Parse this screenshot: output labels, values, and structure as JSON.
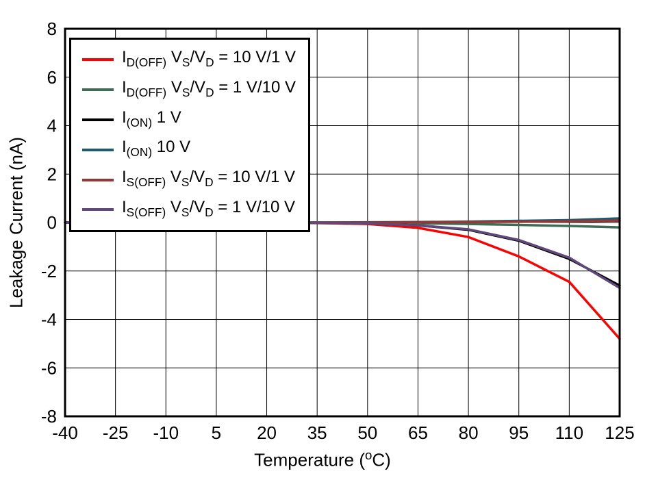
{
  "chart_data": {
    "type": "line",
    "title": "",
    "xlabel": "Temperature (^{o}C)",
    "ylabel": "Leakage Current (nA)",
    "xlim": [
      -40,
      125
    ],
    "ylim": [
      -8,
      8
    ],
    "xticks": [
      -40,
      -25,
      -10,
      5,
      20,
      35,
      50,
      65,
      80,
      95,
      110,
      125
    ],
    "yticks": [
      -8,
      -6,
      -4,
      -2,
      0,
      2,
      4,
      6,
      8
    ],
    "grid": true,
    "legend_position": "top-left",
    "x": [
      -40,
      -25,
      -10,
      5,
      20,
      35,
      50,
      65,
      80,
      95,
      110,
      125
    ],
    "series": [
      {
        "name": "I_{D(OFF)} V_{S}/V_{D} = 10 V/1 V",
        "color": "#FF0000",
        "values": [
          0,
          0,
          0,
          0,
          -0.01,
          -0.02,
          -0.06,
          -0.22,
          -0.6,
          -1.4,
          -2.45,
          -4.8
        ]
      },
      {
        "name": "I_{D(OFF)} V_{S}/V_{D} = 1 V/10 V",
        "color": "#3D6B54",
        "values": [
          0,
          0,
          0,
          0,
          0,
          0,
          -0.01,
          -0.03,
          -0.06,
          -0.1,
          -0.14,
          -0.2
        ]
      },
      {
        "name": "I_{(ON)} 1 V",
        "color": "#000000",
        "values": [
          0,
          0,
          0,
          0,
          0,
          -0.01,
          -0.04,
          -0.12,
          -0.3,
          -0.75,
          -1.5,
          -2.6
        ]
      },
      {
        "name": "I_{(ON)} 10 V",
        "color": "#1F5B6E",
        "values": [
          0,
          0,
          0,
          0,
          0,
          0,
          0.01,
          0.02,
          0.04,
          0.07,
          0.1,
          0.17
        ]
      },
      {
        "name": "I_{S(OFF)} V_{S}/V_{D} = 10 V/1 V",
        "color": "#953735",
        "values": [
          0,
          0,
          0,
          0,
          0,
          0,
          0,
          0.01,
          0.02,
          0.03,
          0.05,
          0.08
        ]
      },
      {
        "name": "I_{S(OFF)} V_{S}/V_{D} = 1 V/10 V",
        "color": "#5F497A",
        "values": [
          0,
          0,
          0,
          0,
          0,
          -0.01,
          -0.04,
          -0.12,
          -0.28,
          -0.72,
          -1.45,
          -2.7
        ]
      }
    ]
  }
}
